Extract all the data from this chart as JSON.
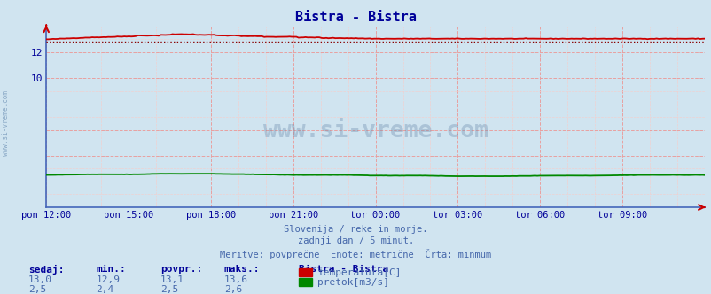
{
  "title": "Bistra - Bistra",
  "bg_color": "#d0e4f0",
  "plot_bg_color": "#d0e4f0",
  "grid_color_major": "#e8a0a0",
  "grid_color_minor": "#f0d0d0",
  "x_labels": [
    "pon 12:00",
    "pon 15:00",
    "pon 18:00",
    "pon 21:00",
    "tor 00:00",
    "tor 03:00",
    "tor 06:00",
    "tor 09:00"
  ],
  "x_ticks_norm": [
    0.0,
    0.125,
    0.25,
    0.375,
    0.5,
    0.625,
    0.75,
    0.875
  ],
  "ylim": [
    0,
    14
  ],
  "yticks_shown": [
    10,
    12
  ],
  "temp_min": 12.9,
  "temp_max": 13.6,
  "temp_avg": 13.1,
  "temp_current": 13.0,
  "flow_min": 2.4,
  "flow_max": 2.6,
  "flow_avg": 2.5,
  "flow_current": 2.5,
  "temp_min_line": 12.85,
  "watermark": "www.si-vreme.com",
  "side_label": "www.si-vreme.com",
  "subtitle1": "Slovenija / reke in morje.",
  "subtitle2": "zadnji dan / 5 minut.",
  "subtitle3": "Meritve: povprečne  Enote: metrične  Črta: minmum",
  "legend_title": "Bistra - Bistra",
  "legend_items": [
    "temperatura[C]",
    "pretok[m3/s]"
  ],
  "legend_colors": [
    "#cc0000",
    "#008800"
  ],
  "stat_headers": [
    "sedaj:",
    "min.:",
    "povpr.:",
    "maks.:"
  ],
  "stat_temp": [
    "13,0",
    "12,9",
    "13,1",
    "13,6"
  ],
  "stat_flow": [
    "2,5",
    "2,4",
    "2,5",
    "2,6"
  ],
  "title_color": "#000099",
  "axis_color": "#000099",
  "text_color": "#4466aa",
  "stat_header_color": "#000099",
  "temp_line_color": "#cc0000",
  "temp_dot_color": "#880000",
  "flow_line_color": "#008800",
  "spine_color": "#4466bb",
  "arrow_color": "#cc0000"
}
